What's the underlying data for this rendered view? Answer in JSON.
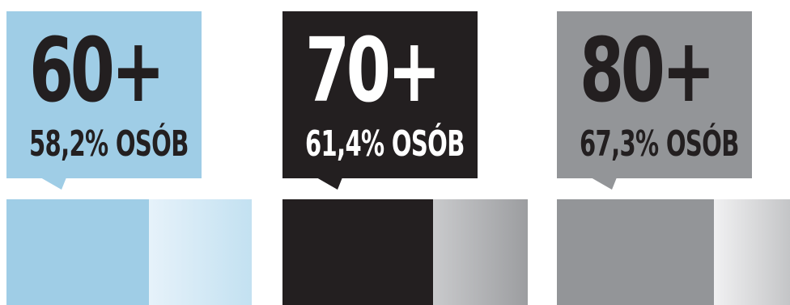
{
  "chart_data": {
    "type": "bar",
    "categories": [
      "60+",
      "70+",
      "80+"
    ],
    "values": [
      58.2,
      61.4,
      67.3
    ],
    "value_labels": [
      "58,2% OSÓB",
      "61,4% OSÓB",
      "67,3% OSÓB"
    ],
    "ylim": [
      0,
      100
    ],
    "title": "",
    "xlabel": "",
    "ylabel": ""
  },
  "colors": {
    "panels": [
      {
        "box": "#9fcde6",
        "big_text": "#231f20",
        "pct_text": "#231f20",
        "bar_main": "#9fcde6",
        "bar_rest_from": "#e6f2fa",
        "bar_rest_to": "#c3e1f1"
      },
      {
        "box": "#231f20",
        "big_text": "#ffffff",
        "pct_text": "#ffffff",
        "bar_main": "#231f20",
        "bar_rest_from": "#c9cacc",
        "bar_rest_to": "#9c9da0"
      },
      {
        "box": "#939598",
        "big_text": "#231f20",
        "pct_text": "#231f20",
        "bar_main": "#939598",
        "bar_rest_from": "#f1f1f2",
        "bar_rest_to": "#c4c5c7"
      }
    ]
  }
}
